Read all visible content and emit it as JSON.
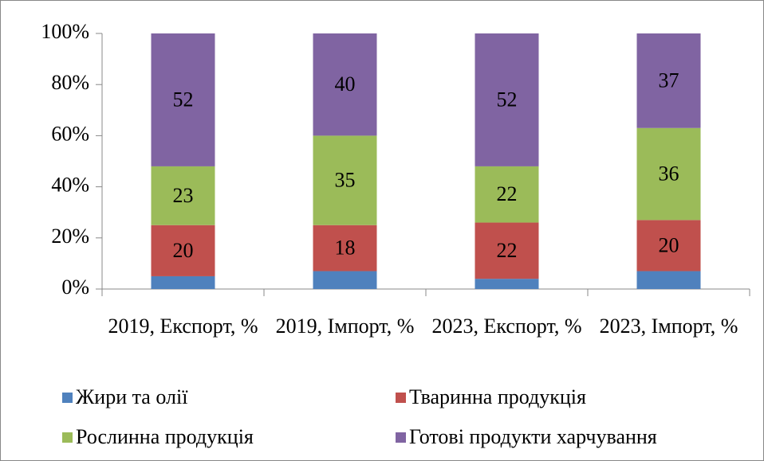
{
  "chart_data": {
    "type": "stacked_bar",
    "categories": [
      "2019, Експорт, %",
      "2019, Імпорт, %",
      "2023, Експорт, %",
      "2023, Імпорт, %"
    ],
    "series": [
      {
        "name": "Жири та олії",
        "color": "#4f81bd",
        "values": [
          5,
          7,
          4,
          7
        ],
        "show_labels": false
      },
      {
        "name": "Тваринна продукція",
        "color": "#c0504d",
        "values": [
          20,
          18,
          22,
          20
        ],
        "show_labels": true
      },
      {
        "name": "Рослинна продукція",
        "color": "#9bbb59",
        "values": [
          23,
          35,
          22,
          36
        ],
        "show_labels": true
      },
      {
        "name": "Готові продукти харчування",
        "color": "#8064a2",
        "values": [
          52,
          40,
          52,
          37
        ],
        "show_labels": true
      }
    ],
    "ylim": [
      0,
      100
    ],
    "yticks": [
      {
        "value": 0,
        "label": "0%"
      },
      {
        "value": 20,
        "label": "20%"
      },
      {
        "value": 40,
        "label": "40%"
      },
      {
        "value": 60,
        "label": "60%"
      },
      {
        "value": 80,
        "label": "80%"
      },
      {
        "value": 100,
        "label": "100%"
      }
    ],
    "grid": false,
    "legend": "bottom"
  }
}
